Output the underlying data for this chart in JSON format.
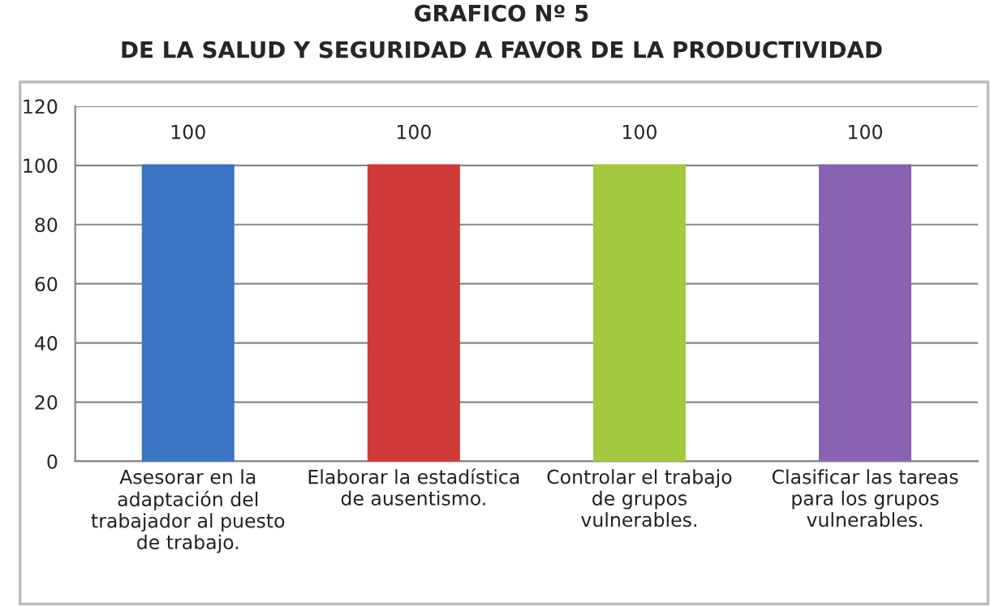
{
  "chart_data": {
    "type": "bar",
    "title": "GRAFICO Nº 5",
    "subtitle": "DE LA SALUD Y SEGURIDAD A FAVOR DE LA PRODUCTIVIDAD",
    "categories": [
      "Asesorar en la\nadaptación del\ntrabajador al puesto\nde trabajo.",
      "Elaborar la estadística\nde ausentismo.",
      "Controlar el trabajo\nde grupos\nvulnerables.",
      "Clasificar las tareas\npara los grupos\nvulnerables."
    ],
    "values": [
      100,
      100,
      100,
      100
    ],
    "colors": [
      "#3b74c2",
      "#cf3a3a",
      "#a3c93e",
      "#8a62b2"
    ],
    "ylim": [
      0,
      120
    ],
    "yticks": [
      0,
      20,
      40,
      60,
      80,
      100,
      120
    ],
    "grid": "y",
    "data_labels": true
  }
}
